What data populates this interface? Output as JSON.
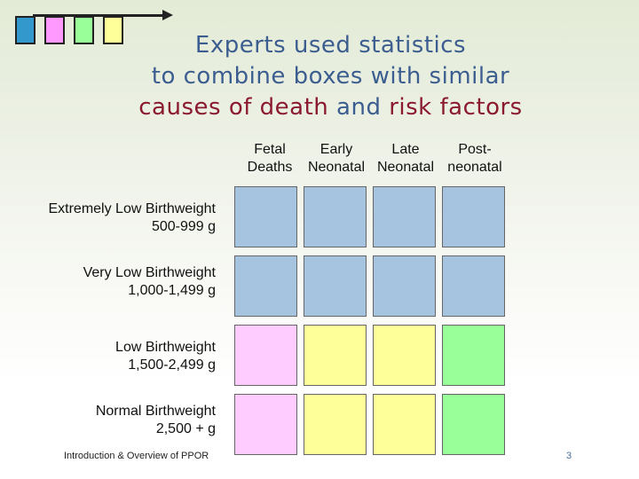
{
  "colors": {
    "blue": "#a6c3e0",
    "pink": "#ffccff",
    "yellow": "#ffff99",
    "green": "#99ff99",
    "title_blue": "#3b5d8f",
    "title_red": "#8b1a2f"
  },
  "logo": {
    "squares": [
      "#3399cc",
      "#ff99ff",
      "#99ff99",
      "#ffff99"
    ]
  },
  "title": {
    "line1": "Experts used statistics",
    "line2": "to combine boxes with similar",
    "line3_part1": "causes of death",
    "line3_part2": " and ",
    "line3_part3": "risk factors"
  },
  "columns": [
    "Fetal\nDeaths",
    "Early\nNeonatal",
    "Late\nNeonatal",
    "Post-\nneonatal"
  ],
  "rows": [
    {
      "label": "Extremely Low Birthweight\n500-999 g",
      "cells": [
        "blue",
        "blue",
        "blue",
        "blue"
      ]
    },
    {
      "label": "Very Low Birthweight\n1,000-1,499 g",
      "cells": [
        "blue",
        "blue",
        "blue",
        "blue"
      ]
    },
    {
      "label": "Low Birthweight\n1,500-2,499 g",
      "cells": [
        "pink",
        "yellow",
        "yellow",
        "green"
      ]
    },
    {
      "label": "Normal Birthweight\n2,500 + g",
      "cells": [
        "pink",
        "yellow",
        "yellow",
        "green"
      ]
    }
  ],
  "footer": {
    "text": "Introduction & Overview of PPOR",
    "page": "3"
  }
}
